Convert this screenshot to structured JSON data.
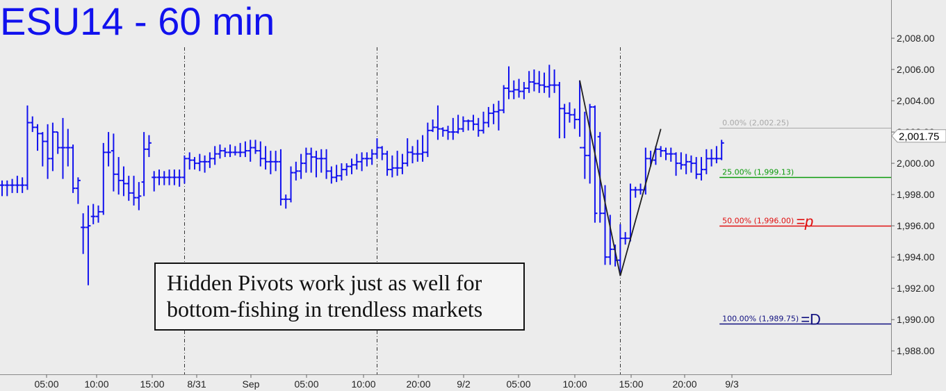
{
  "chart_data": {
    "type": "ohlc",
    "title": "ESU14 - 60 min",
    "ylim": [
      1986.5,
      2010.0
    ],
    "x_tick_labels": [
      "05:00",
      "10:00",
      "15:00",
      "8/31",
      "Sep",
      "05:00",
      "10:00",
      "20:00",
      "9/2",
      "05:00",
      "10:00",
      "15:00",
      "20:00",
      "9/3"
    ],
    "y_ticks": [
      1988,
      1990,
      1992,
      1994,
      1996,
      1998,
      2000,
      2002,
      2004,
      2006,
      2008
    ],
    "y_tick_labels": [
      "1,988.00",
      "1,990.00",
      "1,992.00",
      "1,994.00",
      "1,996.00",
      "1,998.00",
      "2,000.00",
      "2,002.00",
      "2,004.00",
      "2,006.00",
      "2,008.00"
    ],
    "last_price": 2001.75,
    "last_price_label": "2,001.75",
    "fib_levels": [
      {
        "pct": 0,
        "price": 2002.25,
        "label": "0.00% (2,002.25)",
        "color": "#a8a8a8",
        "tag": ""
      },
      {
        "pct": 25,
        "price": 1999.13,
        "label": "25.00% (1,999.13)",
        "color": "#0a9a0a",
        "tag": ""
      },
      {
        "pct": 50,
        "price": 1996.0,
        "label": "50.00% (1,996.00)",
        "color": "#e01010",
        "tag": "=p"
      },
      {
        "pct": 100,
        "price": 1989.75,
        "label": "100.00% (1,989.75)",
        "color": "#101080",
        "tag": "=D"
      }
    ],
    "pattern_points": [
      [
        114,
        2005.3
      ],
      [
        122,
        1992.8
      ],
      [
        130,
        2002.2
      ]
    ],
    "session_dividers": [
      36,
      74,
      122
    ],
    "bars": [
      [
        0,
        1998.6,
        1998.9,
        1997.9,
        1998.6
      ],
      [
        1,
        1998.6,
        1998.9,
        1997.9,
        1998.6
      ],
      [
        2,
        1998.6,
        1999.0,
        1998.1,
        1998.6
      ],
      [
        3,
        1998.6,
        1999.2,
        1998.1,
        1998.6
      ],
      [
        4,
        1998.6,
        1999.1,
        1998.1,
        1998.6
      ],
      [
        5,
        1998.6,
        2003.7,
        1998.3,
        2002.6
      ],
      [
        6,
        2002.6,
        2003.0,
        2002.0,
        2002.3
      ],
      [
        7,
        2002.3,
        2002.5,
        2000.8,
        2001.9
      ],
      [
        8,
        2001.9,
        2002.0,
        1999.8,
        2001.4
      ],
      [
        9,
        2001.4,
        2002.5,
        1999.0,
        2000.3
      ],
      [
        10,
        2000.3,
        2002.6,
        1999.5,
        2002.0
      ],
      [
        11,
        2002.0,
        2002.0,
        2000.6,
        2001.0
      ],
      [
        12,
        2001.0,
        2002.9,
        1999.0,
        2001.0
      ],
      [
        13,
        2001.0,
        2002.2,
        1999.8,
        2001.0
      ],
      [
        14,
        2001.0,
        2001.2,
        1998.1,
        1998.4
      ],
      [
        15,
        1998.4,
        1999.1,
        1997.4,
        1998.9
      ],
      [
        16,
        1995.9,
        1996.8,
        1994.2,
        1995.9
      ],
      [
        17,
        1995.9,
        1997.3,
        1992.2,
        1996.0
      ],
      [
        18,
        1996.6,
        1997.4,
        1996.1,
        1996.6
      ],
      [
        19,
        1996.6,
        1997.3,
        1996.2,
        1996.9
      ],
      [
        20,
        1996.9,
        2001.3,
        1996.7,
        2000.7
      ],
      [
        21,
        2000.7,
        2002.0,
        1999.8,
        2000.7
      ],
      [
        22,
        2000.8,
        2001.9,
        1998.2,
        1999.3
      ],
      [
        23,
        1999.3,
        2000.4,
        1998.0,
        1998.9
      ],
      [
        24,
        1998.9,
        1999.8,
        1997.9,
        1998.7
      ],
      [
        25,
        1998.7,
        1999.2,
        1997.6,
        1998.1
      ],
      [
        26,
        1998.1,
        1999.2,
        1997.3,
        1997.8
      ],
      [
        27,
        1997.8,
        1998.8,
        1997.0,
        1997.9
      ],
      [
        28,
        1998.8,
        2002.0,
        1997.9,
        2000.9
      ],
      [
        29,
        2000.9,
        2001.8,
        2000.4,
        2001.3
      ],
      [
        30,
        1999.1,
        1999.5,
        1998.2,
        1999.1
      ],
      [
        31,
        1999.1,
        1999.6,
        1998.6,
        1999.1
      ],
      [
        32,
        1999.1,
        1999.5,
        1998.6,
        1999.1
      ],
      [
        33,
        1999.1,
        1999.6,
        1998.6,
        1999.1
      ],
      [
        34,
        1999.1,
        1999.6,
        1998.6,
        1999.1
      ],
      [
        35,
        1999.1,
        1999.6,
        1998.5,
        1999.1
      ],
      [
        36,
        1999.1,
        2000.5,
        1998.7,
        2000.3
      ],
      [
        37,
        2000.3,
        2000.7,
        1999.6,
        2000.2
      ],
      [
        38,
        2000.2,
        2000.4,
        1999.6,
        2000.0
      ],
      [
        39,
        2000.0,
        2000.6,
        1999.5,
        2000.1
      ],
      [
        40,
        2000.1,
        2000.5,
        1999.4,
        2000.1
      ],
      [
        41,
        2000.1,
        2000.7,
        1999.7,
        2000.3
      ],
      [
        42,
        2000.3,
        2001.1,
        1999.9,
        2000.6
      ],
      [
        43,
        2000.6,
        2001.2,
        2000.3,
        2000.8
      ],
      [
        44,
        2000.8,
        2001.0,
        2000.4,
        2000.7
      ],
      [
        45,
        2000.7,
        2001.2,
        2000.4,
        2000.7
      ],
      [
        46,
        2000.7,
        2001.1,
        2000.5,
        2000.7
      ],
      [
        47,
        2000.7,
        2001.3,
        2000.4,
        2000.7
      ],
      [
        48,
        2000.7,
        2001.4,
        2000.4,
        2000.8
      ],
      [
        49,
        2000.8,
        2001.5,
        2000.1,
        2001.0
      ],
      [
        50,
        2001.0,
        2001.5,
        2000.6,
        2000.8
      ],
      [
        51,
        2000.8,
        2001.4,
        1999.8,
        2000.3
      ],
      [
        52,
        2000.3,
        2001.1,
        1999.6,
        2000.1
      ],
      [
        53,
        2000.1,
        2000.8,
        1999.3,
        2000.1
      ],
      [
        54,
        2000.1,
        2000.8,
        1999.5,
        2000.1
      ],
      [
        55,
        2000.1,
        2000.9,
        1997.3,
        1997.7
      ],
      [
        56,
        1997.7,
        1998.0,
        1997.1,
        1997.7
      ],
      [
        57,
        1997.7,
        1999.8,
        1997.5,
        1999.4
      ],
      [
        58,
        1999.4,
        2000.1,
        1998.9,
        1999.5
      ],
      [
        59,
        1999.5,
        2000.6,
        1999.0,
        2000.0
      ],
      [
        60,
        2000.0,
        2001.0,
        1999.4,
        2000.6
      ],
      [
        61,
        2000.6,
        2001.0,
        1999.4,
        2000.4
      ],
      [
        62,
        2000.4,
        2000.8,
        1999.1,
        2000.3
      ],
      [
        63,
        2000.3,
        2000.9,
        1999.4,
        2000.3
      ],
      [
        64,
        2000.3,
        2000.9,
        1999.0,
        1999.5
      ],
      [
        65,
        1999.5,
        1999.8,
        1998.7,
        1999.1
      ],
      [
        66,
        1999.1,
        1999.9,
        1998.8,
        1999.2
      ],
      [
        67,
        1999.2,
        2000.0,
        1998.9,
        1999.6
      ],
      [
        68,
        1999.6,
        2000.0,
        1999.2,
        1999.8
      ],
      [
        69,
        1999.8,
        2000.3,
        1999.3,
        1999.9
      ],
      [
        70,
        1999.9,
        2000.6,
        1999.6,
        2000.1
      ],
      [
        71,
        2000.1,
        2000.7,
        1999.5,
        2000.3
      ],
      [
        72,
        2000.3,
        2000.7,
        1999.8,
        2000.3
      ],
      [
        73,
        2000.3,
        2000.9,
        1999.9,
        2000.6
      ],
      [
        74,
        2000.6,
        2001.6,
        2000.3,
        2001.0
      ],
      [
        75,
        2001.0,
        2001.1,
        2000.2,
        2000.6
      ],
      [
        76,
        2000.6,
        2000.8,
        1999.2,
        1999.6
      ],
      [
        77,
        1999.6,
        2000.5,
        1999.1,
        1999.7
      ],
      [
        78,
        1999.7,
        2000.8,
        1999.2,
        1999.7
      ],
      [
        79,
        1999.7,
        2000.6,
        1999.3,
        2000.0
      ],
      [
        80,
        2000.0,
        2001.6,
        1999.8,
        2000.7
      ],
      [
        81,
        2000.7,
        2001.1,
        2000.0,
        2000.6
      ],
      [
        82,
        2000.6,
        2001.5,
        2000.1,
        2000.6
      ],
      [
        83,
        2000.6,
        2001.8,
        2000.1,
        2000.7
      ],
      [
        84,
        2000.7,
        2002.6,
        2000.4,
        2002.1
      ],
      [
        85,
        2002.1,
        2002.8,
        2002.0,
        2002.3
      ],
      [
        86,
        2002.3,
        2003.7,
        2001.5,
        2002.2
      ],
      [
        87,
        2002.2,
        2002.3,
        2001.7,
        2002.1
      ],
      [
        88,
        2002.1,
        2002.4,
        2001.5,
        2002.0
      ],
      [
        89,
        2002.0,
        2002.9,
        2001.5,
        2002.0
      ],
      [
        90,
        2002.0,
        2003.1,
        2001.9,
        2002.2
      ],
      [
        91,
        2002.2,
        2003.0,
        2002.0,
        2002.7
      ],
      [
        92,
        2002.7,
        2002.8,
        2002.1,
        2002.7
      ],
      [
        93,
        2002.7,
        2003.1,
        2002.1,
        2002.5
      ],
      [
        94,
        2002.5,
        2002.9,
        2001.7,
        2002.1
      ],
      [
        95,
        2002.1,
        2003.3,
        2001.9,
        2002.6
      ],
      [
        96,
        2002.6,
        2003.6,
        2002.3,
        2003.2
      ],
      [
        97,
        2003.2,
        2003.8,
        2002.5,
        2003.3
      ],
      [
        98,
        2003.3,
        2004.0,
        2002.1,
        2003.4
      ],
      [
        99,
        2003.4,
        2005.0,
        2003.2,
        2004.8
      ],
      [
        100,
        2004.8,
        2006.2,
        2004.1,
        2004.6
      ],
      [
        101,
        2004.6,
        2005.3,
        2004.1,
        2004.7
      ],
      [
        102,
        2004.7,
        2005.4,
        2004.2,
        2004.6
      ],
      [
        103,
        2004.6,
        2005.2,
        2004.1,
        2004.8
      ],
      [
        104,
        2004.8,
        2005.9,
        2004.5,
        2005.2
      ],
      [
        105,
        2005.2,
        2006.0,
        2004.6,
        2005.1
      ],
      [
        106,
        2005.1,
        2005.9,
        2004.5,
        2005.0
      ],
      [
        107,
        2005.0,
        2005.8,
        2004.5,
        2004.9
      ],
      [
        108,
        2004.9,
        2006.3,
        2004.2,
        2005.0
      ],
      [
        109,
        2005.0,
        2006.0,
        2004.5,
        2005.0
      ],
      [
        110,
        2005.0,
        2005.2,
        2001.6,
        2003.5
      ],
      [
        111,
        2003.5,
        2003.8,
        2001.6,
        2003.2
      ],
      [
        112,
        2003.2,
        2003.9,
        2002.6,
        2003.1
      ],
      [
        113,
        2003.1,
        2003.5,
        2002.2,
        2002.8
      ],
      [
        114,
        2002.8,
        2005.3,
        2001.7,
        2001.0
      ],
      [
        115,
        2001.0,
        2003.3,
        1999.0,
        2000.5
      ],
      [
        116,
        2000.5,
        2003.8,
        1998.7,
        2003.6
      ],
      [
        117,
        2003.6,
        2003.7,
        1996.2,
        1996.8
      ],
      [
        118,
        2001.7,
        2002.0,
        1996.2,
        1996.8
      ],
      [
        119,
        1996.8,
        1998.6,
        1993.5,
        1994.0
      ],
      [
        120,
        1994.0,
        1996.7,
        1993.5,
        1994.5
      ],
      [
        121,
        1994.5,
        1994.8,
        1993.4,
        1993.8
      ],
      [
        122,
        1993.8,
        1996.1,
        1992.8,
        1995.2
      ],
      [
        123,
        1995.2,
        1995.6,
        1994.8,
        1995.2
      ],
      [
        124,
        1995.2,
        1998.7,
        1995.0,
        1998.3
      ],
      [
        125,
        1998.3,
        1998.5,
        1997.8,
        1998.3
      ],
      [
        126,
        1998.3,
        1998.7,
        1998.0,
        1998.3
      ],
      [
        127,
        1998.3,
        2001.0,
        1998.0,
        2000.3
      ],
      [
        128,
        2000.3,
        2000.8,
        1999.8,
        2000.2
      ],
      [
        129,
        2000.2,
        2001.1,
        1999.9,
        2000.9
      ],
      [
        130,
        2000.9,
        2001.1,
        2000.4,
        2000.8
      ],
      [
        131,
        2000.8,
        2001.0,
        2000.2,
        2000.6
      ],
      [
        132,
        2000.6,
        2001.0,
        2000.1,
        2000.6
      ],
      [
        133,
        2000.6,
        2000.7,
        1999.2,
        2000.0
      ],
      [
        134,
        2000.0,
        2000.7,
        1999.6,
        1999.9
      ],
      [
        135,
        1999.9,
        2000.6,
        1999.3,
        2000.1
      ],
      [
        136,
        2000.1,
        2000.5,
        1999.4,
        2000.0
      ],
      [
        137,
        2000.0,
        2000.4,
        1999.0,
        1999.3
      ],
      [
        138,
        1999.3,
        2000.4,
        1998.9,
        1999.6
      ],
      [
        139,
        1999.6,
        2000.9,
        1999.3,
        2000.3
      ],
      [
        140,
        2000.3,
        2000.9,
        1999.8,
        2000.3
      ],
      [
        141,
        2000.3,
        2001.1,
        2000.0,
        2000.3
      ],
      [
        142,
        2000.3,
        2001.5,
        2000.2,
        2001.3
      ]
    ]
  },
  "annotation": {
    "line1": "Hidden Pivots work just as well for",
    "line2": "bottom-fishing in trendless markets"
  },
  "colors": {
    "bars": "#1111ee",
    "pattern": "#202020",
    "background": "#ececec"
  }
}
